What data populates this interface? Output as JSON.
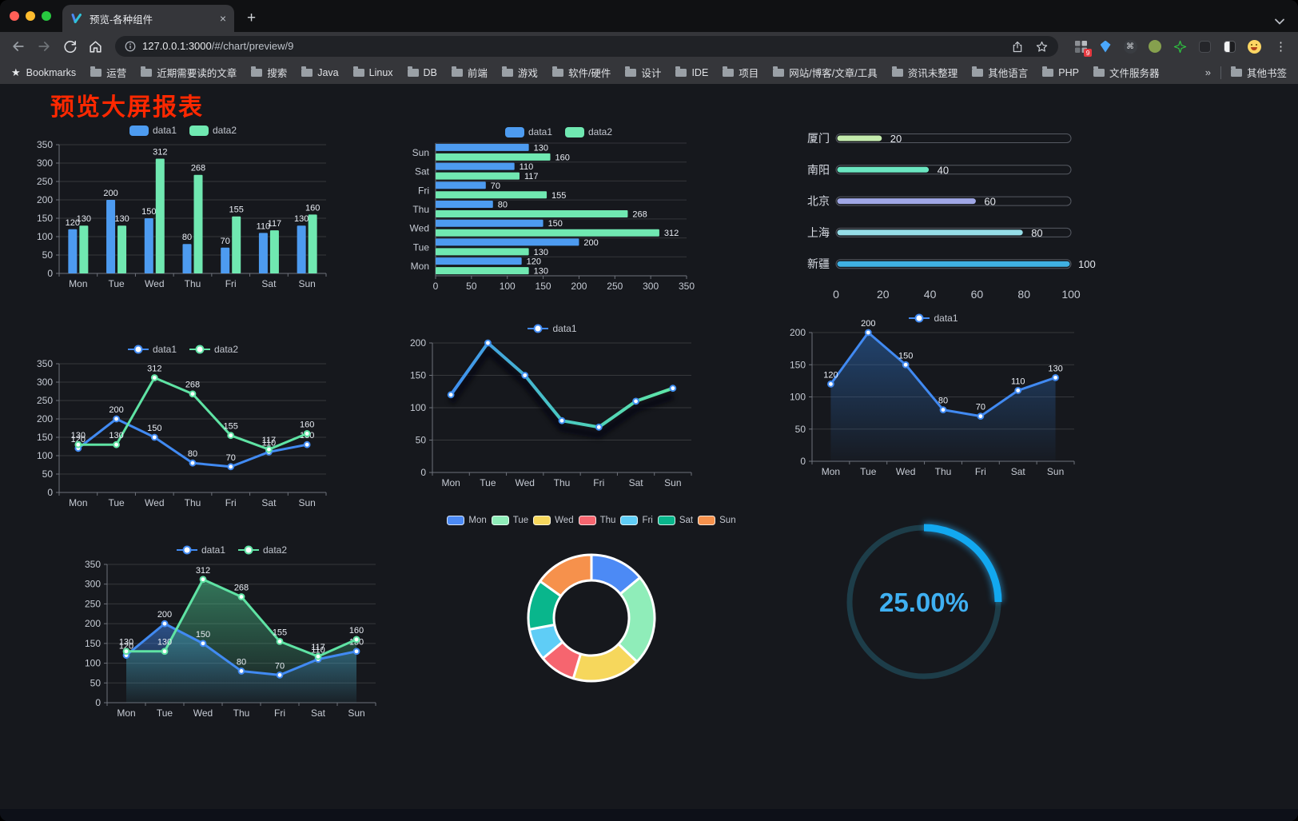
{
  "browser": {
    "traffic_lights": [
      "#ff5f57",
      "#febc2e",
      "#28c840"
    ],
    "tab": {
      "title": "预览-各种组件"
    },
    "url": {
      "host": "127.0.0.1:3000",
      "path": "/#/chart/preview/9"
    },
    "extension_badge": "9",
    "bookmarks": {
      "label": "Bookmarks",
      "items": [
        "运营",
        "近期需要读的文章",
        "搜索",
        "Java",
        "Linux",
        "DB",
        "前端",
        "游戏",
        "软件/硬件",
        "设计",
        "IDE",
        "项目",
        "网站/博客/文章/工具",
        "资讯未整理",
        "其他语言",
        "PHP",
        "文件服务器"
      ],
      "overflow": "»",
      "other_label": "其他书签"
    }
  },
  "icons": {
    "close": "×",
    "new_tab": "+",
    "menu_dots": "⋮",
    "bookmarks_star": "★",
    "circle_glyph": "⌘"
  },
  "page": {
    "title": "预览大屏报表",
    "title_color": "#ff2800",
    "background": "#16181d"
  },
  "chart_data": [
    {
      "id": "grouped-bar",
      "type": "bar",
      "categories": [
        "Mon",
        "Tue",
        "Wed",
        "Thu",
        "Fri",
        "Sat",
        "Sun"
      ],
      "series": [
        {
          "name": "data1",
          "color": "#4d9bf0",
          "values": [
            120,
            200,
            150,
            80,
            70,
            110,
            130
          ]
        },
        {
          "name": "data2",
          "color": "#70e8b1",
          "values": [
            130,
            130,
            312,
            268,
            155,
            117,
            160
          ]
        }
      ],
      "ylim": [
        0,
        350
      ],
      "ystep": 50,
      "legend": true,
      "legend_marker": "rect",
      "labels": true
    },
    {
      "id": "horizontal-bar",
      "type": "hbar",
      "categories_bottom_to_top": [
        "Mon",
        "Tue",
        "Wed",
        "Thu",
        "Fri",
        "Sat",
        "Sun"
      ],
      "series": [
        {
          "name": "data1",
          "color": "#4d9bf0",
          "values": [
            120,
            200,
            150,
            80,
            70,
            110,
            130
          ]
        },
        {
          "name": "data2",
          "color": "#70e8b1",
          "values": [
            130,
            130,
            312,
            268,
            155,
            117,
            160
          ]
        }
      ],
      "xlim": [
        0,
        350
      ],
      "xstep": 50,
      "legend": true,
      "legend_marker": "rect",
      "labels": true
    },
    {
      "id": "progress-bars",
      "type": "progress",
      "max": 100,
      "rows": [
        {
          "label": "厦门",
          "value": 20,
          "color": "#c4ebad"
        },
        {
          "label": "南阳",
          "value": 40,
          "color": "#6be6c1"
        },
        {
          "label": "北京",
          "value": 60,
          "color": "#a0a7e6"
        },
        {
          "label": "上海",
          "value": 80,
          "color": "#96dee8"
        },
        {
          "label": "新疆",
          "value": 100,
          "color": "#3fb1e3"
        }
      ],
      "axis_ticks": [
        0,
        20,
        40,
        60,
        80,
        100
      ]
    },
    {
      "id": "line-two-series",
      "type": "line",
      "categories": [
        "Mon",
        "Tue",
        "Wed",
        "Thu",
        "Fri",
        "Sat",
        "Sun"
      ],
      "series": [
        {
          "name": "data1",
          "color": "#418af2",
          "values": [
            120,
            200,
            150,
            80,
            70,
            110,
            130
          ]
        },
        {
          "name": "data2",
          "color": "#5fe3a4",
          "values": [
            130,
            130,
            312,
            268,
            155,
            117,
            160
          ]
        }
      ],
      "ylim": [
        0,
        350
      ],
      "ystep": 50,
      "legend": true,
      "legend_marker": "line",
      "labels": true
    },
    {
      "id": "gradient-line",
      "type": "line",
      "categories": [
        "Mon",
        "Tue",
        "Wed",
        "Thu",
        "Fri",
        "Sat",
        "Sun"
      ],
      "series": [
        {
          "name": "data1",
          "color": "#418af2",
          "values": [
            120,
            200,
            150,
            80,
            70,
            110,
            130
          ]
        }
      ],
      "gradient_stroke": [
        "#3f8ef0",
        "#49c9c2",
        "#5fe6a6"
      ],
      "shadow": true,
      "line_width": 4,
      "ylim": [
        0,
        200
      ],
      "ystep": 50,
      "legend": true,
      "legend_marker": "line",
      "labels": false
    },
    {
      "id": "area-line",
      "type": "line",
      "categories": [
        "Mon",
        "Tue",
        "Wed",
        "Thu",
        "Fri",
        "Sat",
        "Sun"
      ],
      "series": [
        {
          "name": "data1",
          "color": "#418af2",
          "values": [
            120,
            200,
            150,
            80,
            70,
            110,
            130
          ],
          "area": true,
          "area_color": "#2d6ebe"
        }
      ],
      "ylim": [
        0,
        200
      ],
      "ystep": 50,
      "legend": true,
      "legend_marker": "line",
      "labels": true
    },
    {
      "id": "area-two-series",
      "type": "line",
      "categories": [
        "Mon",
        "Tue",
        "Wed",
        "Thu",
        "Fri",
        "Sat",
        "Sun"
      ],
      "series": [
        {
          "name": "data1",
          "color": "#418af2",
          "values": [
            120,
            200,
            150,
            80,
            70,
            110,
            130
          ],
          "area": true,
          "area_color": "#4189f2"
        },
        {
          "name": "data2",
          "color": "#5fe3a4",
          "values": [
            130,
            130,
            312,
            268,
            155,
            117,
            160
          ],
          "area": true,
          "area_color": "#50d296"
        }
      ],
      "ylim": [
        0,
        350
      ],
      "ystep": 50,
      "legend": true,
      "legend_marker": "line",
      "labels": true
    },
    {
      "id": "donut",
      "type": "pie",
      "legend": true,
      "legend_marker": "rect-small",
      "items": [
        {
          "name": "Mon",
          "value": 120,
          "color": "#4c8af5"
        },
        {
          "name": "Tue",
          "value": 200,
          "color": "#8fedb9"
        },
        {
          "name": "Wed",
          "value": 150,
          "color": "#f6d75c"
        },
        {
          "name": "Thu",
          "value": 80,
          "color": "#f6656f"
        },
        {
          "name": "Fri",
          "value": 70,
          "color": "#5fcdf6"
        },
        {
          "name": "Sat",
          "value": 110,
          "color": "#09b68c"
        },
        {
          "name": "Sun",
          "value": 130,
          "color": "#f6914c"
        }
      ],
      "inner_radius": 47,
      "outer_radius": 79
    },
    {
      "id": "gauge",
      "type": "gauge",
      "value": 25,
      "max": 100,
      "label": "25.00%",
      "progress_color": "#12a8f0",
      "track_color": "#1d3d49",
      "text_color": "#3fb0f2"
    }
  ]
}
